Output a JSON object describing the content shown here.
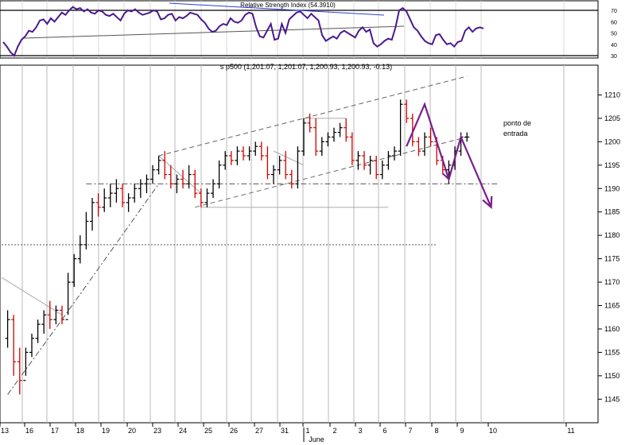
{
  "rsi_panel": {
    "title": "Relative Strength Index (54.3910)",
    "y_ticks": [
      "70",
      "60",
      "50",
      "40",
      "30"
    ],
    "bands": [
      70,
      30
    ],
    "series": [
      42,
      38,
      33,
      30,
      38,
      44,
      47,
      52,
      51,
      55,
      61,
      62,
      58,
      63,
      60,
      64,
      68,
      66,
      70,
      73,
      71,
      72,
      69,
      71,
      68,
      67,
      70,
      69,
      66,
      65,
      67,
      64,
      61,
      67,
      70,
      69,
      71,
      68,
      66,
      67,
      68,
      70,
      69,
      62,
      63,
      66,
      67,
      61,
      64,
      63,
      65,
      68,
      67,
      66,
      62,
      59,
      54,
      51,
      52,
      56,
      58,
      57,
      63,
      60,
      59,
      61,
      66,
      68,
      67,
      55,
      47,
      46,
      52,
      58,
      44,
      45,
      58,
      50,
      62,
      65,
      68,
      69,
      66,
      63,
      67,
      64,
      61,
      48,
      43,
      45,
      47,
      45,
      50,
      52,
      50,
      48,
      46,
      52,
      55,
      51,
      53,
      41,
      38,
      40,
      43,
      45,
      44,
      55,
      70,
      72,
      69,
      62,
      55,
      52,
      47,
      43,
      41,
      40,
      48,
      49,
      44,
      40,
      41,
      38,
      42,
      43,
      52,
      55,
      51,
      54,
      55,
      54
    ],
    "color": "#4b1a8c"
  },
  "main_chart": {
    "title": "s p500 (1,201.07, 1,201.07, 1,200.93, 1,200.93, -0.13)",
    "y_ticks": [
      "1210",
      "1205",
      "1200",
      "1195",
      "1190",
      "1185",
      "1180",
      "1175",
      "1170",
      "1165",
      "1160",
      "1155",
      "1150",
      "1145"
    ],
    "x_labels": [
      "13",
      "16",
      "17",
      "18",
      "19",
      "20",
      "23",
      "24",
      "25",
      "26",
      "27",
      "31",
      "1",
      "2",
      "3",
      "6",
      "7",
      "8",
      "9",
      "10",
      "11"
    ],
    "month_label": "June",
    "annotation": [
      "ponto de",
      "entrada"
    ],
    "up_color": "#000000",
    "down_color": "#cc0000",
    "arrow_color": "#7a1e8c"
  },
  "chart_data": {
    "type": "candlestick",
    "title": "s p500 (1,201.07, 1,201.07, 1,200.93, 1,200.93, -0.13)",
    "ylim": [
      1142,
      1215
    ],
    "dates": [
      "13",
      "16",
      "17",
      "18",
      "19",
      "20",
      "23",
      "24",
      "25",
      "26",
      "27",
      "31",
      "1",
      "2",
      "3",
      "6",
      "7",
      "8",
      "9",
      "10"
    ],
    "bars": [
      [
        1,
        1158,
        1164,
        1156,
        1162
      ],
      [
        2,
        1162,
        1163,
        1150,
        1153
      ],
      [
        3,
        1153,
        1156,
        1146,
        1149
      ],
      [
        4,
        1149,
        1156,
        1150,
        1155
      ],
      [
        5,
        1155,
        1159,
        1154,
        1158
      ],
      [
        6,
        1158,
        1162,
        1157,
        1161
      ],
      [
        7,
        1161,
        1164,
        1159,
        1163
      ],
      [
        8,
        1163,
        1166,
        1160,
        1162
      ],
      [
        9,
        1162,
        1165,
        1161,
        1164
      ],
      [
        10,
        1164,
        1165,
        1161,
        1162
      ],
      [
        11,
        1162,
        1172,
        1163,
        1170
      ],
      [
        12,
        1170,
        1176,
        1169,
        1175
      ],
      [
        13,
        1175,
        1180,
        1174,
        1178
      ],
      [
        14,
        1178,
        1185,
        1177,
        1183
      ],
      [
        15,
        1183,
        1188,
        1181,
        1187
      ],
      [
        16,
        1187,
        1189,
        1184,
        1186
      ],
      [
        17,
        1186,
        1190,
        1185,
        1188
      ],
      [
        18,
        1188,
        1191,
        1186,
        1189
      ],
      [
        19,
        1189,
        1192,
        1187,
        1190
      ],
      [
        20,
        1190,
        1191,
        1186,
        1187
      ],
      [
        21,
        1187,
        1189,
        1185,
        1188
      ],
      [
        22,
        1188,
        1191,
        1187,
        1190
      ],
      [
        23,
        1190,
        1192,
        1188,
        1191
      ],
      [
        24,
        1191,
        1193,
        1189,
        1192
      ],
      [
        25,
        1192,
        1195,
        1191,
        1194
      ],
      [
        26,
        1194,
        1197,
        1193,
        1196
      ],
      [
        27,
        1196,
        1198,
        1192,
        1193
      ],
      [
        28,
        1193,
        1195,
        1190,
        1191
      ],
      [
        29,
        1191,
        1193,
        1189,
        1192
      ],
      [
        30,
        1192,
        1194,
        1190,
        1191
      ],
      [
        31,
        1191,
        1195,
        1190,
        1193
      ],
      [
        32,
        1193,
        1194,
        1188,
        1189
      ],
      [
        33,
        1189,
        1190,
        1186,
        1187
      ],
      [
        34,
        1187,
        1190,
        1186,
        1189
      ],
      [
        35,
        1189,
        1192,
        1188,
        1191
      ],
      [
        36,
        1191,
        1196,
        1190,
        1195
      ],
      [
        37,
        1195,
        1198,
        1194,
        1197
      ],
      [
        38,
        1197,
        1198,
        1195,
        1196
      ],
      [
        39,
        1196,
        1199,
        1195,
        1198
      ],
      [
        40,
        1198,
        1199,
        1196,
        1197
      ],
      [
        41,
        1197,
        1199,
        1196,
        1198
      ],
      [
        42,
        1198,
        1200,
        1197,
        1199
      ],
      [
        43,
        1199,
        1200,
        1196,
        1197
      ],
      [
        44,
        1197,
        1199,
        1192,
        1193
      ],
      [
        45,
        1193,
        1195,
        1191,
        1194
      ],
      [
        46,
        1194,
        1197,
        1193,
        1196
      ],
      [
        47,
        1196,
        1198,
        1192,
        1193
      ],
      [
        48,
        1193,
        1194,
        1190,
        1191
      ],
      [
        49,
        1191,
        1199,
        1190,
        1198
      ],
      [
        50,
        1198,
        1205,
        1197,
        1204
      ],
      [
        51,
        1204,
        1206,
        1202,
        1203
      ],
      [
        52,
        1203,
        1205,
        1197,
        1198
      ],
      [
        53,
        1198,
        1201,
        1197,
        1200
      ],
      [
        54,
        1200,
        1202,
        1199,
        1201
      ],
      [
        55,
        1201,
        1203,
        1200,
        1202
      ],
      [
        56,
        1202,
        1204,
        1201,
        1203
      ],
      [
        57,
        1203,
        1205,
        1200,
        1201
      ],
      [
        58,
        1201,
        1202,
        1195,
        1196
      ],
      [
        59,
        1196,
        1198,
        1194,
        1197
      ],
      [
        60,
        1197,
        1198,
        1194,
        1195
      ],
      [
        61,
        1195,
        1197,
        1193,
        1196
      ],
      [
        62,
        1196,
        1197,
        1192,
        1193
      ],
      [
        63,
        1193,
        1196,
        1192,
        1195
      ],
      [
        64,
        1195,
        1198,
        1194,
        1197
      ],
      [
        65,
        1197,
        1199,
        1196,
        1198
      ],
      [
        66,
        1198,
        1209,
        1197,
        1208
      ],
      [
        67,
        1208,
        1209,
        1204,
        1205
      ],
      [
        68,
        1205,
        1206,
        1199,
        1200
      ],
      [
        69,
        1200,
        1201,
        1197,
        1198
      ],
      [
        70,
        1198,
        1202,
        1197,
        1201
      ],
      [
        71,
        1201,
        1203,
        1199,
        1200
      ],
      [
        72,
        1200,
        1201,
        1195,
        1196
      ],
      [
        73,
        1196,
        1197,
        1193,
        1194
      ],
      [
        74,
        1194,
        1196,
        1191,
        1195
      ],
      [
        75,
        1195,
        1199,
        1194,
        1198
      ],
      [
        76,
        1198,
        1202,
        1197,
        1201
      ],
      [
        77,
        1201,
        1202,
        1200,
        1201
      ]
    ],
    "lines": [
      {
        "style": "dashed",
        "points": [
          [
            26,
            1197
          ],
          [
            77,
            1214
          ]
        ]
      },
      {
        "style": "dashed",
        "points": [
          [
            32,
            1186
          ],
          [
            77,
            1201
          ]
        ]
      },
      {
        "style": "dashdot",
        "points": [
          [
            1,
            1146
          ],
          [
            10,
            1162
          ]
        ]
      },
      {
        "style": "dashdot",
        "points": [
          [
            10,
            1162
          ],
          [
            26,
            1191
          ]
        ]
      },
      {
        "style": "dashdot",
        "points": [
          [
            14,
            1191
          ],
          [
            82,
            1191
          ]
        ]
      },
      {
        "style": "dotted",
        "points": [
          [
            0,
            1178
          ],
          [
            72,
            1178
          ]
        ]
      },
      {
        "style": "solid-gray",
        "points": [
          [
            0,
            1171
          ],
          [
            10,
            1163
          ]
        ]
      },
      {
        "style": "solid-gray",
        "points": [
          [
            26,
            1197
          ],
          [
            33,
            1189
          ]
        ]
      },
      {
        "style": "solid-gray",
        "points": [
          [
            45,
            1198
          ],
          [
            50,
            1195
          ]
        ]
      },
      {
        "style": "solid-gray",
        "points": [
          [
            50,
            1205
          ],
          [
            57,
            1205
          ]
        ]
      },
      {
        "style": "solid-gray",
        "points": [
          [
            33,
            1186
          ],
          [
            64,
            1186
          ]
        ]
      }
    ],
    "projection_arrows": [
      [
        [
          67,
          1199
        ],
        [
          70,
          1208
        ],
        [
          74,
          1192
        ],
        [
          76,
          1201
        ],
        [
          81,
          1186
        ]
      ]
    ]
  }
}
